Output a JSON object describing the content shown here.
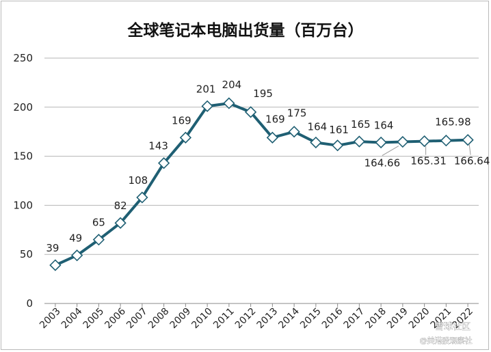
{
  "chart_data": {
    "type": "line",
    "title": "全球笔记本电脑出货量（百万台）",
    "xlabel": "",
    "ylabel": "",
    "ylim": [
      0,
      250
    ],
    "yticks": [
      0,
      50,
      100,
      150,
      200,
      250
    ],
    "grid": true,
    "legend": "none",
    "x": [
      "2003",
      "2004",
      "2005",
      "2006",
      "2007",
      "2008",
      "2009",
      "2010",
      "2011",
      "2012",
      "2013",
      "2014",
      "2015",
      "2016",
      "2017",
      "2018",
      "2019",
      "2020",
      "2021",
      "2022"
    ],
    "series": [
      {
        "values": [
          39,
          49,
          65,
          82,
          108,
          143,
          169,
          201,
          204,
          195,
          169,
          175,
          164,
          161,
          165,
          164,
          164.66,
          165.31,
          165.98,
          166.64
        ],
        "labels": [
          "39",
          "49",
          "65",
          "82",
          "108",
          "143",
          "169",
          "201",
          "204",
          "195",
          "169",
          "175",
          "164",
          "161",
          "165",
          "164",
          "164.66",
          "165.31",
          "165.98",
          "166.64"
        ],
        "color": "#1f5f73"
      }
    ]
  },
  "watermark": {
    "line1": "雪球社区",
    "line2": "@美港股观察社"
  }
}
